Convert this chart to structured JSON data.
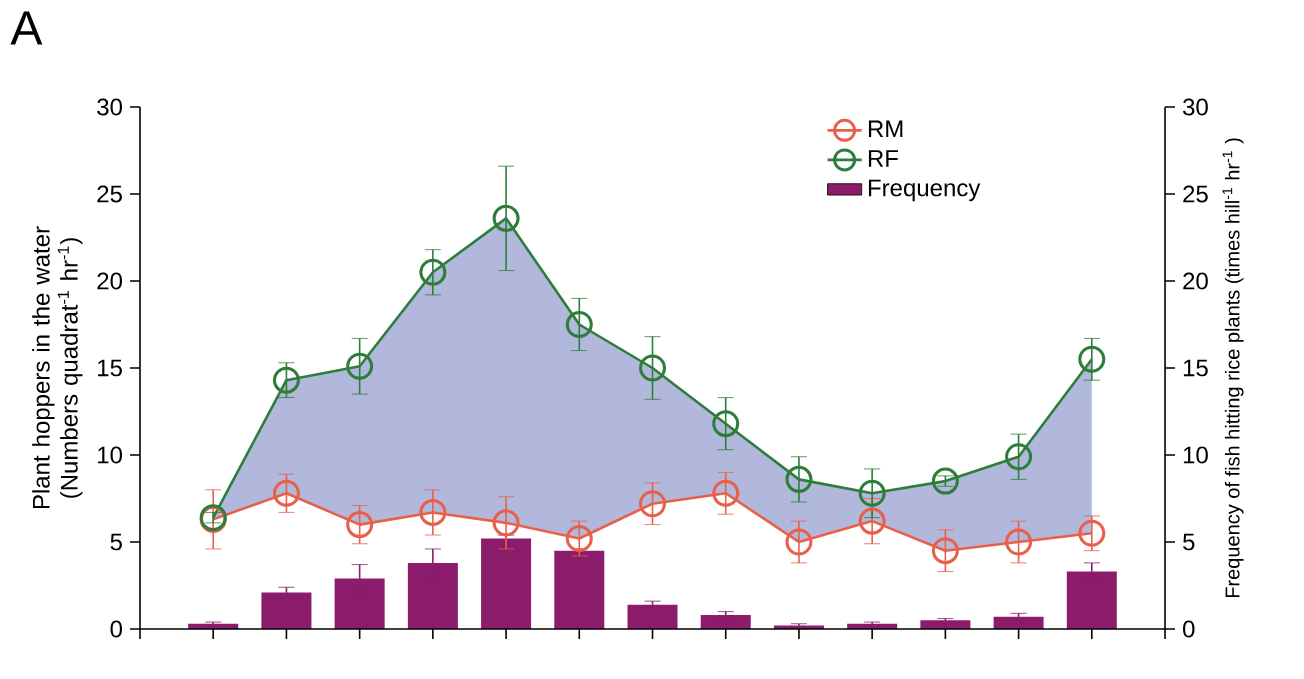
{
  "chart_data": {
    "type": "line",
    "title": "A",
    "ylabel": "Plant hoppers in the water (Numbers  quadrat$^{-1}$ hr$^{-1}$)",
    "y2label": "Frequency of fish hitting rice plants (times hill$^{-1}$ hr$^{-1}$ )",
    "categories": [
      null,
      null,
      null,
      null,
      null,
      null,
      null,
      null,
      null,
      null,
      null,
      null,
      null
    ],
    "series": [
      {
        "name": "RM",
        "color": "#e8604a",
        "values": [
          6.3,
          7.8,
          6.0,
          6.7,
          6.1,
          5.2,
          7.2,
          7.8,
          5.0,
          6.2,
          4.5,
          5.0,
          5.5
        ],
        "errors": [
          1.7,
          1.1,
          1.1,
          1.3,
          1.5,
          1.0,
          1.2,
          1.2,
          1.2,
          1.3,
          1.2,
          1.2,
          1.0
        ]
      },
      {
        "name": "RF",
        "color": "#2e7d3a",
        "values": [
          6.4,
          14.3,
          15.1,
          20.5,
          23.6,
          17.5,
          15.0,
          11.8,
          8.6,
          7.8,
          8.5,
          9.9,
          15.5
        ],
        "errors": [
          0.3,
          1.0,
          1.6,
          1.3,
          3.0,
          1.5,
          1.8,
          1.5,
          1.3,
          1.4,
          0.3,
          1.3,
          1.2
        ],
        "lower": [
          6.3,
          7.8,
          6.0,
          6.7,
          6.1,
          5.2,
          7.2,
          7.8,
          5.0,
          6.2,
          4.5,
          5.0,
          5.5
        ],
        "upper": [
          6.4,
          14.3,
          15.1,
          20.5,
          23.6,
          17.5,
          15.0,
          11.8,
          8.6,
          7.8,
          8.5,
          9.9,
          15.5
        ]
      },
      {
        "name": "Frequency",
        "type": "bar",
        "axis": "y2",
        "color": "#8b1c6b",
        "values": [
          0.3,
          2.1,
          2.9,
          3.8,
          5.2,
          4.5,
          1.4,
          0.8,
          0.2,
          0.3,
          0.5,
          0.7,
          3.3
        ],
        "errors": [
          0.1,
          0.3,
          0.8,
          0.8,
          0.2,
          0.1,
          0.2,
          0.2,
          0.1,
          0.1,
          0.1,
          0.2,
          0.5
        ]
      }
    ],
    "ylim": [
      0,
      30
    ],
    "yticks": [
      0,
      5,
      10,
      15,
      20,
      25,
      30
    ],
    "y2lim": [
      0,
      30
    ],
    "y2ticks": [
      0,
      5,
      10,
      15,
      20,
      25,
      30
    ],
    "marker": "circle",
    "line_style": "solid",
    "grid": false,
    "legend": "top right"
  }
}
